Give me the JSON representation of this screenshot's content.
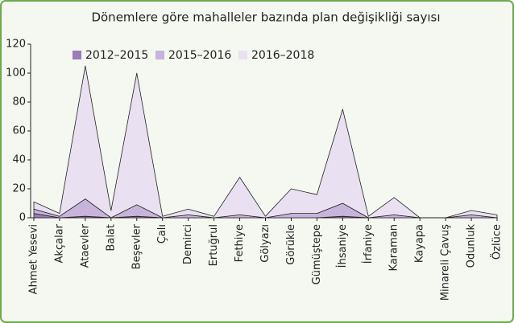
{
  "chart_data": {
    "type": "stacked_area",
    "title": "Dönemlere göre mahalleler bazında plan değişikliği sayısı",
    "categories": [
      "Ahmet Yesevi",
      "Akçalar",
      "Ataevler",
      "Balat",
      "Beşevler",
      "Çalı",
      "Demirci",
      "Ertuğrul",
      "Fethiye",
      "Gölyazı",
      "Görükle",
      "Gümüştepe",
      "İhsaniye",
      "İrfaniye",
      "Karaman",
      "Kayapa",
      "Minareli Çavuş",
      "Odunluk",
      "Özlüce"
    ],
    "series": [
      {
        "name": "2012–2015",
        "color": "#9b7bb8",
        "values": [
          3,
          0,
          1,
          0,
          1,
          0,
          0,
          0,
          0,
          0,
          0,
          0,
          1,
          0,
          0,
          0,
          0,
          0,
          0
        ]
      },
      {
        "name": "2015–2016",
        "color": "#c8b4da",
        "values": [
          3,
          1,
          12,
          0,
          8,
          0,
          2,
          0,
          2,
          0,
          3,
          3,
          9,
          0,
          2,
          0,
          0,
          2,
          0
        ]
      },
      {
        "name": "2016–2018",
        "color": "#e9e1f1",
        "values": [
          5,
          2,
          92,
          5,
          91,
          1,
          4,
          1,
          26,
          1,
          17,
          13,
          65,
          1,
          12,
          0,
          0,
          3,
          2
        ]
      }
    ],
    "ylim": [
      0,
      120
    ],
    "yticks": [
      0,
      20,
      40,
      60,
      80,
      100,
      120
    ],
    "legend": "top-left"
  }
}
